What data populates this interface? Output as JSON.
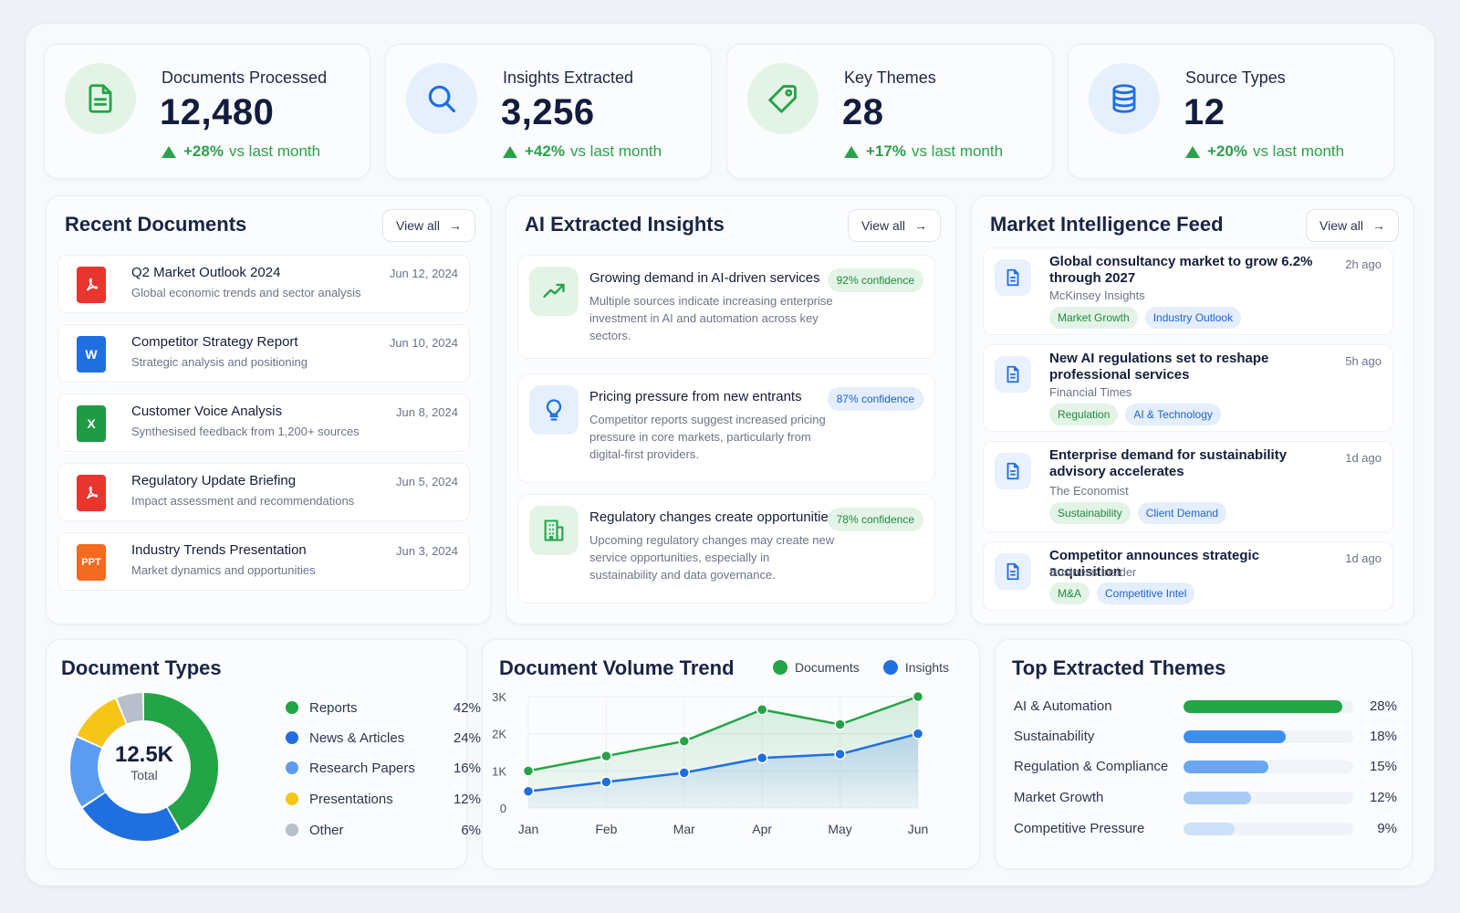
{
  "kpis": [
    {
      "title": "Documents Processed",
      "value": "12,480",
      "change": "+28%",
      "vs": "vs last month",
      "icon": "document-icon"
    },
    {
      "title": "Insights Extracted",
      "value": "3,256",
      "change": "+42%",
      "vs": "vs last month",
      "icon": "search-icon"
    },
    {
      "title": "Key Themes",
      "value": "28",
      "change": "+17%",
      "vs": "vs last month",
      "icon": "tag-icon"
    },
    {
      "title": "Source Types",
      "value": "12",
      "change": "+20%",
      "vs": "vs last month",
      "icon": "database-icon"
    }
  ],
  "recent_documents": {
    "title": "Recent Documents",
    "view_all": "View all",
    "items": [
      {
        "title": "Q2 Market Outlook 2024",
        "subtitle": "Global economic trends and sector analysis",
        "date": "Jun 12, 2024",
        "type": "pdf"
      },
      {
        "title": "Competitor Strategy Report",
        "subtitle": "Strategic analysis and positioning",
        "date": "Jun 10, 2024",
        "type": "word",
        "icon_text": "W"
      },
      {
        "title": "Customer Voice Analysis",
        "subtitle": "Synthesised feedback from 1,200+ sources",
        "date": "Jun 8, 2024",
        "type": "excel",
        "icon_text": "X"
      },
      {
        "title": "Regulatory Update Briefing",
        "subtitle": "Impact assessment and recommendations",
        "date": "Jun 5, 2024",
        "type": "pdf"
      },
      {
        "title": "Industry Trends Presentation",
        "subtitle": "Market dynamics and opportunities",
        "date": "Jun 3, 2024",
        "type": "ppt",
        "icon_text": "PPT"
      }
    ]
  },
  "ai_insights": {
    "title": "AI Extracted Insights",
    "view_all": "View all",
    "items": [
      {
        "title": "Growing demand in AI-driven services",
        "description": "Multiple sources indicate increasing enterprise investment in AI and automation across key sectors.",
        "confidence": "92% confidence",
        "icon": "trend-up-icon"
      },
      {
        "title": "Pricing pressure from new entrants",
        "description": "Competitor reports suggest increased pricing pressure in core markets, particularly from digital-first providers.",
        "confidence": "87% confidence",
        "icon": "lightbulb-icon"
      },
      {
        "title": "Regulatory changes create opportunities",
        "description": "Upcoming regulatory changes may create new service opportunities, especially in sustainability and data governance.",
        "confidence": "78% confidence",
        "icon": "building-icon"
      }
    ]
  },
  "market_feed": {
    "title": "Market Intelligence Feed",
    "view_all": "View all",
    "items": [
      {
        "title": "Global consultancy market to grow 6.2% through 2027",
        "source": "McKinsey Insights",
        "time": "2h ago",
        "tags": [
          "Market Growth",
          "Industry Outlook"
        ]
      },
      {
        "title": "New AI regulations set to reshape professional services",
        "source": "Financial Times",
        "time": "5h ago",
        "tags": [
          "Regulation",
          "AI & Technology"
        ]
      },
      {
        "title": "Enterprise demand for sustainability advisory accelerates",
        "source": "The Economist",
        "time": "1d ago",
        "tags": [
          "Sustainability",
          "Client Demand"
        ]
      },
      {
        "title": "Competitor announces strategic acquisition",
        "source": "Business Insider",
        "time": "1d ago",
        "tags": [
          "M&A",
          "Competitive Intel"
        ]
      }
    ]
  },
  "document_types": {
    "title": "Document Types",
    "center_value": "12.5K",
    "center_label": "Total",
    "items": [
      {
        "label": "Reports",
        "pct": "42%",
        "value": 42,
        "color": "#22a447"
      },
      {
        "label": "News & Articles",
        "pct": "24%",
        "value": 24,
        "color": "#1f6fe0"
      },
      {
        "label": "Research Papers",
        "pct": "16%",
        "value": 16,
        "color": "#5b9cf0"
      },
      {
        "label": "Presentations",
        "pct": "12%",
        "value": 12,
        "color": "#f5c518"
      },
      {
        "label": "Other",
        "pct": "6%",
        "value": 6,
        "color": "#b9bfca"
      }
    ]
  },
  "volume_trend": {
    "title": "Document Volume Trend",
    "legend": [
      {
        "label": "Documents",
        "color": "#22a447"
      },
      {
        "label": "Insights",
        "color": "#1f6fe0"
      }
    ]
  },
  "top_themes": {
    "title": "Top Extracted Themes",
    "items": [
      {
        "label": "AI & Automation",
        "pct": "28%",
        "value": 28,
        "color": "#22a447"
      },
      {
        "label": "Sustainability",
        "pct": "18%",
        "value": 18,
        "color": "#3d8ef0"
      },
      {
        "label": "Regulation & Compliance",
        "pct": "15%",
        "value": 15,
        "color": "#6aa6f2"
      },
      {
        "label": "Market Growth",
        "pct": "12%",
        "value": 12,
        "color": "#a9cbf6"
      },
      {
        "label": "Competitive Pressure",
        "pct": "9%",
        "value": 9,
        "color": "#cfe1f9"
      }
    ]
  },
  "chart_data": [
    {
      "type": "line",
      "title": "Document Volume Trend",
      "x": [
        "Jan",
        "Feb",
        "Mar",
        "Apr",
        "May",
        "Jun"
      ],
      "yticks": [
        "0",
        "1K",
        "2K",
        "3K"
      ],
      "ylim": [
        0,
        3000
      ],
      "series": [
        {
          "name": "Documents",
          "values": [
            1000,
            1400,
            1800,
            2650,
            2250,
            3000
          ],
          "color": "#22a447"
        },
        {
          "name": "Insights",
          "values": [
            450,
            700,
            950,
            1350,
            1450,
            2000
          ],
          "color": "#1f6fe0"
        }
      ],
      "grid": true,
      "legend": "top-right"
    },
    {
      "type": "pie",
      "title": "Document Types",
      "categories": [
        "Reports",
        "News & Articles",
        "Research Papers",
        "Presentations",
        "Other"
      ],
      "values": [
        42,
        24,
        16,
        12,
        6
      ]
    }
  ]
}
